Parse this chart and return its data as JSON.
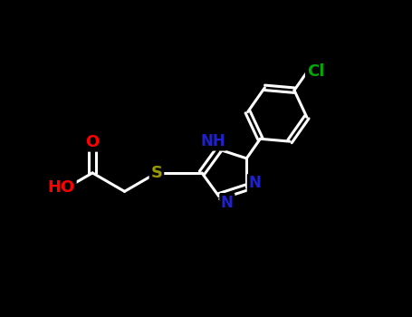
{
  "background_color": "#000000",
  "fig_width": 4.55,
  "fig_height": 3.5,
  "dpi": 100,
  "atom_colors": {
    "N": "#2020cc",
    "O": "#ff0000",
    "S": "#999900",
    "Cl": "#00aa00"
  },
  "bond_color": "#ffffff",
  "bond_width": 2.2,
  "font_size_atoms": 13,
  "xlim": [
    0,
    10
  ],
  "ylim": [
    0,
    7.7
  ]
}
